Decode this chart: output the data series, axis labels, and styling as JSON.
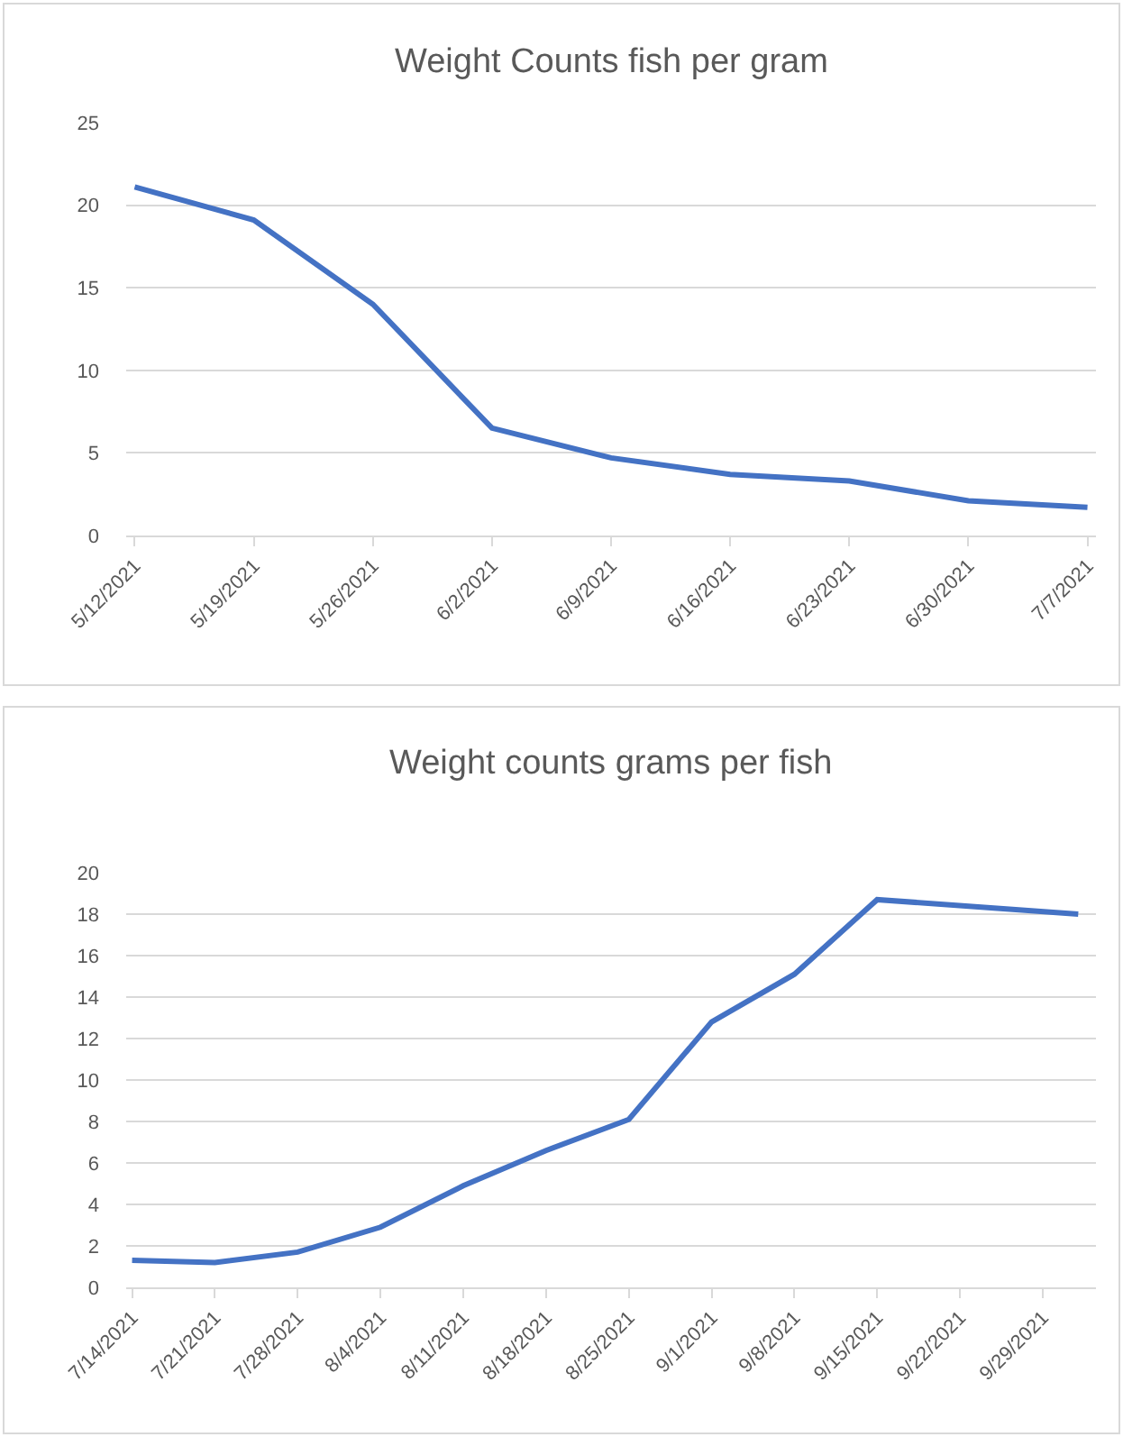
{
  "chart_data": [
    {
      "type": "line",
      "title": "Weight Counts fish per gram",
      "x": [
        "2021-05-12",
        "2021-05-19",
        "2021-05-26",
        "2021-06-02",
        "2021-06-09",
        "2021-06-16",
        "2021-06-23",
        "2021-06-30",
        "2021-07-07"
      ],
      "series": [
        {
          "color": "#4472c4",
          "values": [
            21.1,
            19.1,
            14.0,
            6.5,
            4.7,
            3.7,
            3.3,
            2.1,
            1.7
          ]
        }
      ],
      "xlim": [
        "2021-05-11T12:00",
        "2021-07-07T12:00"
      ],
      "xticks": [
        {
          "value": "2021-05-12",
          "label": "5/12/2021"
        },
        {
          "value": "2021-05-19",
          "label": "5/19/2021"
        },
        {
          "value": "2021-05-26",
          "label": "5/26/2021"
        },
        {
          "value": "2021-06-02",
          "label": "6/2/2021"
        },
        {
          "value": "2021-06-09",
          "label": "6/9/2021"
        },
        {
          "value": "2021-06-16",
          "label": "6/16/2021"
        },
        {
          "value": "2021-06-23",
          "label": "6/23/2021"
        },
        {
          "value": "2021-06-30",
          "label": "6/30/2021"
        },
        {
          "value": "2021-07-07",
          "label": "7/7/2021"
        }
      ],
      "ylim": [
        0,
        25
      ],
      "yticks": [
        0,
        5,
        10,
        15,
        20,
        25
      ],
      "grid": "y",
      "marker": "none",
      "line_style": "solid"
    },
    {
      "type": "line",
      "title": "Weight counts grams per fish",
      "x": [
        "2021-07-14",
        "2021-07-21",
        "2021-07-28",
        "2021-08-04",
        "2021-08-11",
        "2021-08-18",
        "2021-08-25",
        "2021-09-01",
        "2021-09-08",
        "2021-09-15",
        "2021-10-02"
      ],
      "series": [
        {
          "color": "#4472c4",
          "values": [
            1.3,
            1.2,
            1.7,
            2.9,
            4.9,
            6.6,
            8.1,
            12.8,
            15.1,
            18.7,
            18.0
          ]
        }
      ],
      "xlim": [
        "2021-07-13T12:00",
        "2021-10-03T12:00"
      ],
      "xticks": [
        {
          "value": "2021-07-14",
          "label": "7/14/2021"
        },
        {
          "value": "2021-07-21",
          "label": "7/21/2021"
        },
        {
          "value": "2021-07-28",
          "label": "7/28/2021"
        },
        {
          "value": "2021-08-04",
          "label": "8/4/2021"
        },
        {
          "value": "2021-08-11",
          "label": "8/11/2021"
        },
        {
          "value": "2021-08-18",
          "label": "8/18/2021"
        },
        {
          "value": "2021-08-25",
          "label": "8/25/2021"
        },
        {
          "value": "2021-09-01",
          "label": "9/1/2021"
        },
        {
          "value": "2021-09-08",
          "label": "9/8/2021"
        },
        {
          "value": "2021-09-15",
          "label": "9/15/2021"
        },
        {
          "value": "2021-09-22",
          "label": "9/22/2021"
        },
        {
          "value": "2021-09-29",
          "label": "9/29/2021"
        }
      ],
      "ylim": [
        0,
        20
      ],
      "yticks": [
        0,
        2,
        4,
        6,
        8,
        10,
        12,
        14,
        16,
        18,
        20
      ],
      "grid": "y",
      "marker": "none",
      "line_style": "solid"
    }
  ]
}
